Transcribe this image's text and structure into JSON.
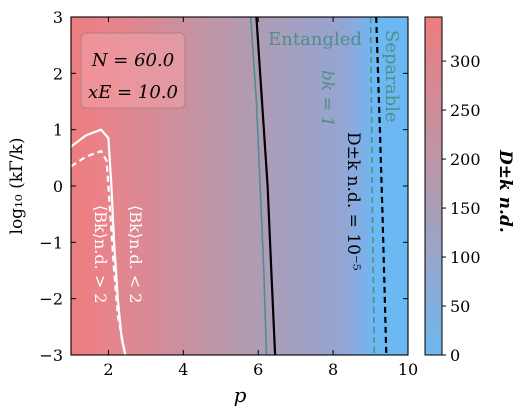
{
  "chart_data": {
    "type": "heatmap",
    "xlabel": "p",
    "ylabel": "log₁₀ (kΓ/k)",
    "xlim": [
      1,
      10
    ],
    "ylim": [
      -3,
      3
    ],
    "x_ticks": [
      "2",
      "4",
      "6",
      "8",
      "10"
    ],
    "y_ticks": [
      "−3",
      "−2",
      "−1",
      "0",
      "1",
      "2",
      "3"
    ],
    "colorbar": {
      "label": "D±k n.d.",
      "range": [
        0,
        345
      ],
      "ticks": [
        "0",
        "50",
        "100",
        "150",
        "200",
        "250",
        "300"
      ],
      "color_low": "#6cb8f2",
      "color_high": "#ec7d7f"
    },
    "params_box": {
      "N": "N = 60.0",
      "xE": "xE = 10.0"
    },
    "region_labels": {
      "entangled": "Entangled",
      "separable": "Separable"
    },
    "contours": [
      {
        "label": "D±k n.d. = 10⁻⁵",
        "style": "solid",
        "color": "#000000",
        "points": [
          [
            5.95,
            3
          ],
          [
            6.1,
            1.5
          ],
          [
            6.25,
            0
          ],
          [
            6.35,
            -1.5
          ],
          [
            6.45,
            -3
          ]
        ]
      },
      {
        "label": "D±k n.d. = 10⁻⁵",
        "style": "dashed",
        "color": "#000000",
        "points": [
          [
            9.15,
            3
          ],
          [
            9.25,
            1.0
          ],
          [
            9.32,
            -0.5
          ],
          [
            9.38,
            -2
          ],
          [
            9.42,
            -3
          ]
        ]
      },
      {
        "label": "bk = 1",
        "style": "solid",
        "color": "#4f8f8a",
        "points": [
          [
            5.8,
            3
          ],
          [
            5.95,
            1.5
          ],
          [
            6.05,
            0
          ],
          [
            6.15,
            -1.5
          ],
          [
            6.22,
            -3
          ]
        ]
      },
      {
        "label": "bk = 1",
        "style": "dashed",
        "color": "#4f8f8a",
        "points": [
          [
            9.0,
            3
          ],
          [
            9.03,
            1.0
          ],
          [
            9.05,
            -0.5
          ],
          [
            9.08,
            -2
          ],
          [
            9.1,
            -3
          ]
        ]
      },
      {
        "label": "⟨Bk⟩n.d. < 2",
        "style": "solid",
        "color": "#ffffff",
        "points": [
          [
            1.0,
            0.7
          ],
          [
            1.4,
            0.9
          ],
          [
            1.8,
            1.0
          ],
          [
            2.0,
            0.85
          ],
          [
            2.08,
            0
          ],
          [
            2.15,
            -1
          ],
          [
            2.25,
            -2
          ],
          [
            2.35,
            -2.7
          ],
          [
            2.45,
            -3
          ]
        ]
      },
      {
        "label": "⟨Bk⟩n.d. > 2",
        "style": "dashed",
        "color": "#ffffff",
        "points": [
          [
            1.0,
            0.35
          ],
          [
            1.4,
            0.52
          ],
          [
            1.8,
            0.62
          ],
          [
            1.95,
            0.45
          ],
          [
            2.05,
            -0.5
          ],
          [
            2.15,
            -1.5
          ],
          [
            2.25,
            -2.3
          ],
          [
            2.45,
            -3
          ]
        ]
      }
    ]
  }
}
